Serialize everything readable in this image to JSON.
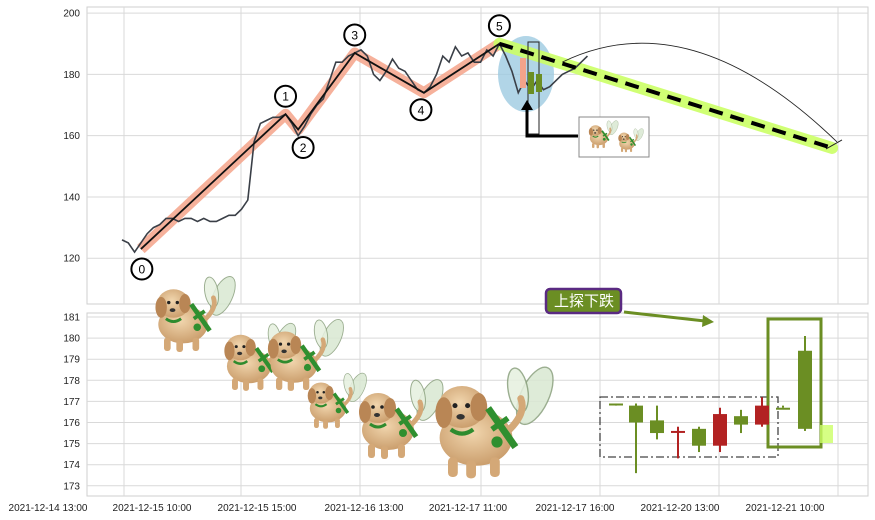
{
  "chart_data": [
    {
      "type": "line",
      "y_ticks": [
        "120",
        "140",
        "160",
        "180",
        "200"
      ],
      "ylim": [
        108,
        202
      ],
      "grid": true,
      "series_line": [
        [
          0,
          126
        ],
        [
          1,
          125
        ],
        [
          2,
          122
        ],
        [
          3,
          125
        ],
        [
          4,
          128
        ],
        [
          5,
          130
        ],
        [
          6,
          131
        ],
        [
          7,
          133
        ],
        [
          8,
          133
        ],
        [
          9,
          132
        ],
        [
          10,
          133
        ],
        [
          11,
          133
        ],
        [
          12,
          132
        ],
        [
          13,
          133
        ],
        [
          14,
          132
        ],
        [
          15,
          132
        ],
        [
          16,
          133
        ],
        [
          17,
          134
        ],
        [
          18,
          134
        ],
        [
          19,
          136
        ],
        [
          20,
          139
        ],
        [
          21,
          158
        ],
        [
          22,
          164
        ],
        [
          23,
          165
        ],
        [
          24,
          166
        ],
        [
          25,
          166
        ],
        [
          26,
          167
        ],
        [
          27,
          164
        ],
        [
          28,
          160
        ],
        [
          29,
          163
        ],
        [
          30,
          167
        ],
        [
          31,
          170
        ],
        [
          32,
          172
        ],
        [
          33,
          178
        ],
        [
          34,
          184
        ],
        [
          35,
          184
        ],
        [
          36,
          186
        ],
        [
          37,
          187
        ],
        [
          38,
          188
        ],
        [
          39,
          186
        ],
        [
          40,
          180
        ],
        [
          41,
          178
        ],
        [
          42,
          181
        ],
        [
          43,
          185
        ],
        [
          44,
          182
        ],
        [
          45,
          181
        ],
        [
          46,
          178
        ],
        [
          47,
          175
        ],
        [
          48,
          174
        ],
        [
          49,
          176
        ],
        [
          50,
          180
        ],
        [
          51,
          186
        ],
        [
          52,
          184
        ],
        [
          53,
          189
        ],
        [
          54,
          186
        ],
        [
          55,
          187
        ],
        [
          56,
          184
        ],
        [
          57,
          184
        ],
        [
          58,
          188
        ],
        [
          59,
          186
        ],
        [
          60,
          190
        ],
        [
          61,
          186
        ],
        [
          62,
          181
        ],
        [
          63,
          174
        ],
        [
          64,
          178
        ],
        [
          65,
          175
        ],
        [
          66,
          178
        ],
        [
          67,
          175
        ],
        [
          68,
          176
        ],
        [
          69,
          178
        ],
        [
          70,
          180
        ],
        [
          71,
          181
        ],
        [
          72,
          182
        ],
        [
          73,
          184
        ],
        [
          74,
          186
        ]
      ],
      "wave_points": [
        {
          "label": "0",
          "x": 3,
          "y": 123
        },
        {
          "label": "1",
          "x": 26,
          "y": 167
        },
        {
          "label": "2",
          "x": 28,
          "y": 162
        },
        {
          "label": "3",
          "x": 37,
          "y": 187
        },
        {
          "label": "4",
          "x": 48,
          "y": 174
        },
        {
          "label": "5",
          "x": 60,
          "y": 190
        }
      ],
      "projection": {
        "from": [
          60,
          190
        ],
        "to": [
          116,
          156
        ]
      }
    },
    {
      "type": "candlestick",
      "y_ticks": [
        "173",
        "174",
        "175",
        "176",
        "177",
        "178",
        "179",
        "180",
        "181"
      ],
      "ylim": [
        172.5,
        181.2
      ],
      "candles": [
        {
          "open": 176.9,
          "close": 176.9,
          "high": 176.9,
          "low": 176.8,
          "color": "#6b8e23"
        },
        {
          "open": 176.8,
          "close": 176.0,
          "high": 176.9,
          "low": 173.6,
          "color": "#6b8e23"
        },
        {
          "open": 176.1,
          "close": 175.5,
          "high": 176.8,
          "low": 175.2,
          "color": "#6b8e23"
        },
        {
          "open": 175.6,
          "close": 175.6,
          "high": 175.8,
          "low": 174.3,
          "color": "#b22222"
        },
        {
          "open": 175.7,
          "close": 174.9,
          "high": 175.8,
          "low": 174.6,
          "color": "#6b8e23"
        },
        {
          "open": 174.9,
          "close": 176.4,
          "high": 176.7,
          "low": 174.6,
          "color": "#b22222"
        },
        {
          "open": 176.3,
          "close": 175.9,
          "high": 176.6,
          "low": 175.5,
          "color": "#6b8e23"
        },
        {
          "open": 175.9,
          "close": 176.8,
          "high": 177.2,
          "low": 175.8,
          "color": "#b22222"
        },
        {
          "open": 176.7,
          "close": 176.7,
          "high": 176.8,
          "low": 176.7,
          "color": "#6b8e23"
        },
        {
          "open": 179.4,
          "close": 175.7,
          "high": 180.1,
          "low": 175.6,
          "color": "#6b8e23"
        }
      ],
      "annotation": "上探下跌"
    }
  ],
  "x_ticks": [
    "2021-12-14 13:00",
    "2021-12-15 10:00",
    "2021-12-15 15:00",
    "2021-12-16 13:00",
    "2021-12-17 11:00",
    "2021-12-17 16:00",
    "2021-12-20 13:00",
    "2021-12-21 10:00"
  ],
  "colors": {
    "price_line": "#3a3f47",
    "wave_band": "#f4a38a",
    "projection_band": "#ccff66",
    "bull": "#6b8e23",
    "bear": "#b22222",
    "annotation_fill": "#6b8e23",
    "annotation_border": "#5a2a82",
    "highlight_ellipse": "#9ecae1"
  },
  "decorations": {
    "puppy_fairies": "cartoon puppies with green swords and wings",
    "icons": [
      "puppy-icon",
      "sword-icon",
      "wing-icon"
    ]
  }
}
